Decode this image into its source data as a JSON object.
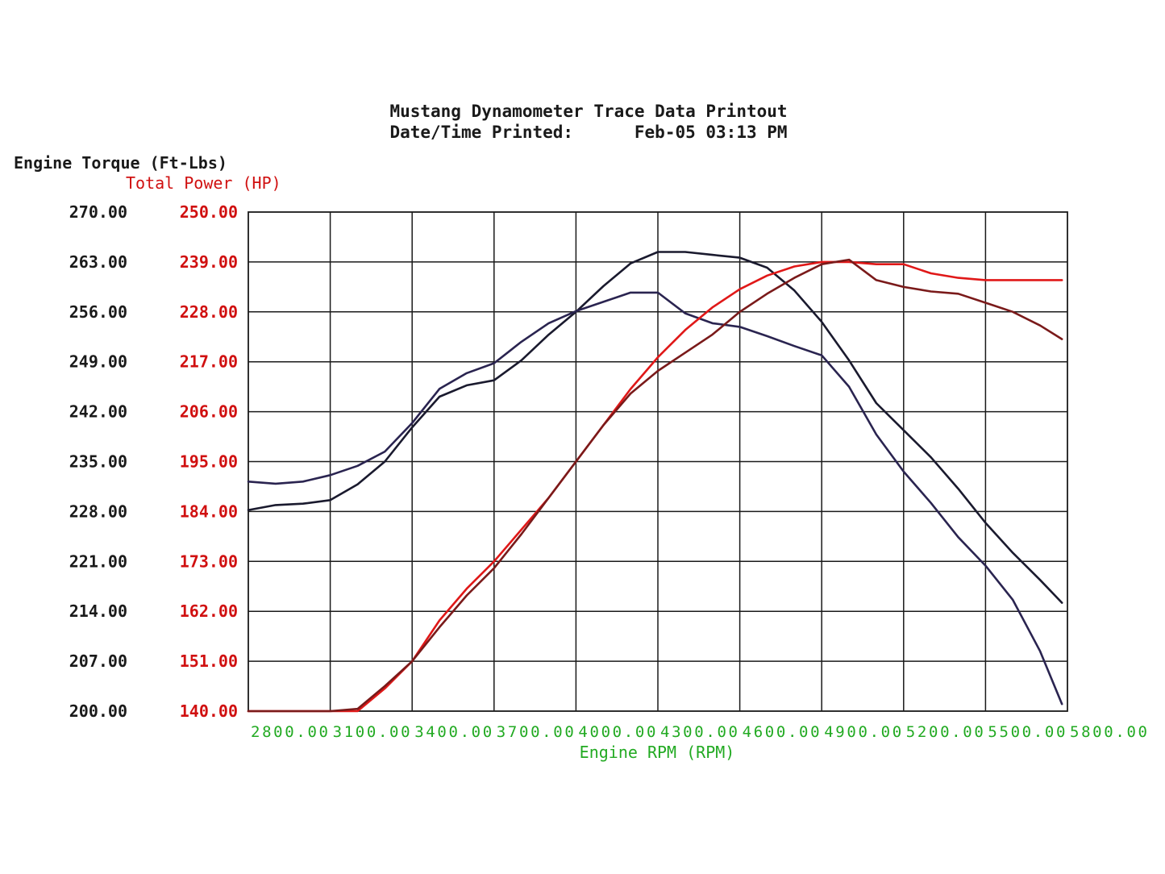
{
  "chart_data": {
    "type": "line",
    "title": "Mustang Dynamometer Trace Data Printout",
    "subtitle": "Date/Time Printed:      Feb-05 03:13 PM",
    "xlabel": "Engine RPM (RPM)",
    "ylabel_left": "Engine Torque (Ft-Lbs)",
    "ylabel_right": "Total Power (HP)",
    "xlim": [
      2800,
      5800
    ],
    "ylim_torque": [
      200,
      270
    ],
    "ylim_power": [
      140,
      250
    ],
    "x_ticks": [
      "2800.00",
      "3100.00",
      "3400.00",
      "3700.00",
      "4000.00",
      "4300.00",
      "4600.00",
      "4900.00",
      "5200.00",
      "5500.00",
      "5800.00"
    ],
    "torque_ticks": [
      "270.00",
      "263.00",
      "256.00",
      "249.00",
      "242.00",
      "235.00",
      "228.00",
      "221.00",
      "214.00",
      "207.00",
      "200.00"
    ],
    "power_ticks": [
      "250.00",
      "239.00",
      "228.00",
      "217.00",
      "206.00",
      "195.00",
      "184.00",
      "173.00",
      "162.00",
      "151.00",
      "140.00"
    ],
    "grid": true,
    "colors": {
      "torque": "#1a1a2e",
      "torque2": "#2a2450",
      "power": "#e01818",
      "power2": "#7a1a1a",
      "x_axis_text": "#22aa22",
      "power_axis_text": "#d01010"
    },
    "series": [
      {
        "axis": "torque",
        "color": "#1a1a2e",
        "x": [
          2800,
          2900,
          3000,
          3100,
          3200,
          3300,
          3400,
          3500,
          3600,
          3700,
          3800,
          3900,
          4000,
          4100,
          4200,
          4300,
          4400,
          4500,
          4600,
          4700,
          4800,
          4900,
          5000,
          5100,
          5200,
          5300,
          5400,
          5500,
          5600,
          5700,
          5780
        ],
        "y": [
          228.2,
          228.9,
          229.1,
          229.6,
          231.8,
          235,
          239.8,
          244.1,
          245.7,
          246.4,
          249.2,
          252.8,
          256,
          259.6,
          262.8,
          264.4,
          264.4,
          264,
          263.6,
          262.2,
          259,
          254.6,
          249.2,
          243.2,
          239.4,
          235.6,
          231.2,
          226.4,
          222.2,
          218.4,
          215.2
        ]
      },
      {
        "axis": "torque",
        "color": "#2a2450",
        "x": [
          2800,
          2900,
          3000,
          3100,
          3200,
          3300,
          3400,
          3500,
          3600,
          3700,
          3800,
          3900,
          4000,
          4100,
          4200,
          4300,
          4400,
          4500,
          4600,
          4700,
          4800,
          4900,
          5000,
          5100,
          5200,
          5300,
          5400,
          5500,
          5600,
          5700,
          5780
        ],
        "y": [
          232.2,
          231.9,
          232.2,
          233.1,
          234.4,
          236.4,
          240.4,
          245.2,
          247.4,
          248.8,
          251.8,
          254.4,
          256.1,
          257.4,
          258.7,
          258.7,
          255.8,
          254.4,
          253.9,
          252.6,
          251.2,
          249.9,
          245.5,
          238.8,
          233.6,
          229.2,
          224.4,
          220.4,
          215.6,
          208.4,
          201
        ]
      },
      {
        "axis": "power",
        "color": "#e01818",
        "x": [
          2800,
          2900,
          3000,
          3100,
          3200,
          3300,
          3400,
          3500,
          3600,
          3700,
          3800,
          3900,
          4000,
          4100,
          4200,
          4300,
          4400,
          4500,
          4600,
          4700,
          4800,
          4900,
          5000,
          5100,
          5200,
          5300,
          5400,
          5500,
          5600,
          5700,
          5780
        ],
        "y": [
          140,
          140,
          140,
          140,
          140,
          145,
          151,
          160,
          167,
          173,
          180,
          187,
          195,
          203,
          211,
          218,
          224,
          229,
          233,
          236,
          238,
          239,
          239,
          238.5,
          238.5,
          236.5,
          235.5,
          235,
          235,
          235,
          235
        ]
      },
      {
        "axis": "power",
        "color": "#7a1a1a",
        "x": [
          2800,
          2900,
          3000,
          3100,
          3200,
          3300,
          3400,
          3500,
          3600,
          3700,
          3800,
          3900,
          4000,
          4100,
          4200,
          4300,
          4400,
          4500,
          4600,
          4700,
          4800,
          4900,
          5000,
          5100,
          5200,
          5300,
          5400,
          5500,
          5600,
          5700,
          5780
        ],
        "y": [
          140,
          140,
          140,
          140,
          140.5,
          145.5,
          151,
          158.5,
          165.5,
          171.5,
          179,
          187,
          195,
          203,
          210,
          215,
          219,
          223,
          228,
          232,
          235.5,
          238.5,
          239.5,
          235,
          233.5,
          232.5,
          232,
          230,
          228,
          225,
          222
        ]
      }
    ]
  }
}
